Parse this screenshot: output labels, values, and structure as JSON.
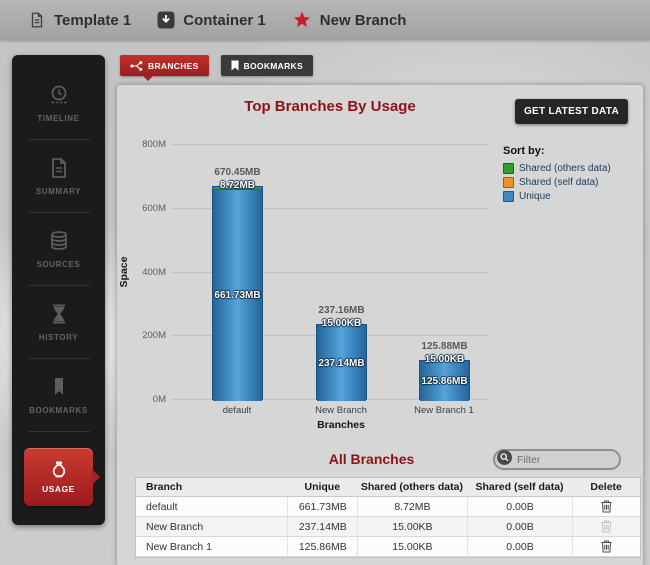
{
  "breadcrumb": {
    "items": [
      {
        "label": "Template 1",
        "icon": "document-icon"
      },
      {
        "label": "Container 1",
        "icon": "container-icon"
      },
      {
        "label": "New Branch",
        "icon": "star-icon"
      }
    ]
  },
  "sidebar": {
    "items": [
      {
        "label": "TIMELINE",
        "icon": "clock-icon",
        "active": false
      },
      {
        "label": "SUMMARY",
        "icon": "document-icon",
        "active": false
      },
      {
        "label": "SOURCES",
        "icon": "database-icon",
        "active": false
      },
      {
        "label": "HISTORY",
        "icon": "hourglass-icon",
        "active": false
      },
      {
        "label": "BOOKMARKS",
        "icon": "bookmark-icon",
        "active": false
      },
      {
        "label": "USAGE",
        "icon": "usage-icon",
        "active": true
      }
    ]
  },
  "tabs": [
    {
      "label": "BRANCHES",
      "icon": "branch-icon",
      "active": true
    },
    {
      "label": "BOOKMARKS",
      "icon": "bookmark-icon",
      "active": false
    }
  ],
  "panel": {
    "get_latest_button": "GET LATEST DATA",
    "all_branches_title": "All Branches",
    "filter_placeholder": "Filter",
    "table": {
      "headers": [
        "Branch",
        "Unique",
        "Shared (others data)",
        "Shared (self data)",
        "Delete"
      ],
      "rows": [
        {
          "branch": "default",
          "unique": "661.73MB",
          "shared_others": "8.72MB",
          "shared_self": "0.00B",
          "delete_enabled": true
        },
        {
          "branch": "New Branch",
          "unique": "237.14MB",
          "shared_others": "15.00KB",
          "shared_self": "0.00B",
          "delete_enabled": false
        },
        {
          "branch": "New Branch 1",
          "unique": "125.86MB",
          "shared_others": "15.00KB",
          "shared_self": "0.00B",
          "delete_enabled": true
        }
      ]
    }
  },
  "chart_data": {
    "type": "bar",
    "stacked": true,
    "title": "Top Branches By Usage",
    "xlabel": "Branches",
    "ylabel": "Space",
    "ylim": [
      0,
      800
    ],
    "y_unit": "MB",
    "yticks": [
      "0M",
      "200M",
      "400M",
      "600M",
      "800M"
    ],
    "grid": true,
    "legend_title": "Sort by:",
    "legend_position": "right",
    "categories": [
      "default",
      "New Branch",
      "New Branch 1"
    ],
    "series": [
      {
        "name": "Shared (others data)",
        "color": "#2f9e2f",
        "values_mb": [
          8.72,
          0.015,
          0.015
        ],
        "labels": [
          "8.72MB",
          "15.00KB",
          "15.00KB"
        ]
      },
      {
        "name": "Shared (self data)",
        "color": "#ee9123",
        "values_mb": [
          0,
          0,
          0
        ],
        "labels": [
          "",
          "",
          ""
        ]
      },
      {
        "name": "Unique",
        "color": "#3f87c1",
        "values_mb": [
          661.73,
          237.14,
          125.86
        ],
        "labels": [
          "661.73MB",
          "237.14MB",
          "125.86MB"
        ]
      }
    ],
    "totals": [
      "670.45MB",
      "237.16MB",
      "125.88MB"
    ]
  },
  "colors": {
    "accent_red": "#b32025",
    "title_red": "#8c1217",
    "bar_blue": "#3f87c1",
    "shared_others_green": "#2f9e2f",
    "shared_self_orange": "#ee9123",
    "sidebar_bg": "#1b1b1b",
    "panel_bg": "#d6d6d6"
  }
}
